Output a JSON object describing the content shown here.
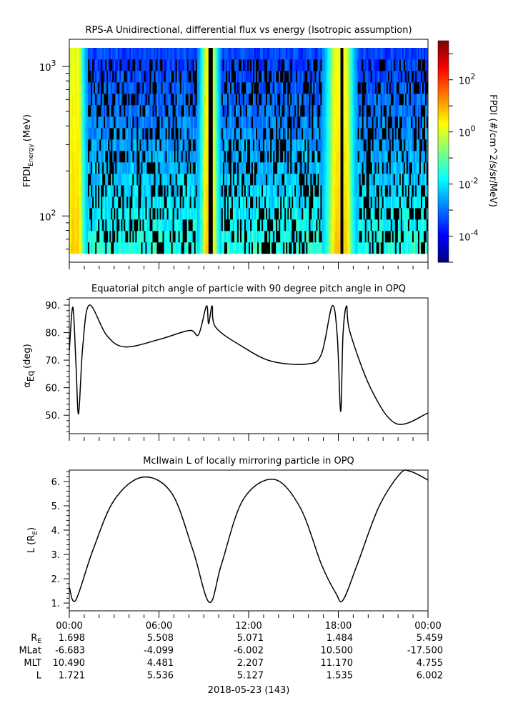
{
  "chart_data": [
    {
      "type": "heatmap",
      "title": "RPS-A Unidirectional, differential flux vs energy (Isotropic assumption)",
      "ylabel": "FPDI",
      "ylabel_sub": "Energy",
      "ylabel_unit": "(MeV)",
      "yscale": "log",
      "ylim": [
        56,
        1330
      ],
      "xlim_hours": [
        0,
        24
      ],
      "yticks": [
        {
          "base": "10",
          "exp": "2",
          "value": 100
        },
        {
          "base": "10",
          "exp": "3",
          "value": 1000
        }
      ],
      "colorbar": {
        "label": "FPDI (#/cm^2/s/sr/MeV)",
        "log_range": [
          -5,
          3.5
        ],
        "ticks": [
          {
            "base": "10",
            "exp": "2",
            "value": 2
          },
          {
            "base": "10",
            "exp": "0",
            "value": 0
          },
          {
            "base": "10",
            "exp": "-2",
            "value": -2
          },
          {
            "base": "10",
            "exp": "-4",
            "value": -4
          }
        ]
      },
      "energy_bins": 18,
      "time_bins": 250
    },
    {
      "type": "line",
      "title": "Equatorial pitch angle of particle with 90 degree pitch angle in OPQ",
      "ylabel": "α",
      "ylabel_sub": "Eq",
      "ylabel_unit": "(deg)",
      "ylim": [
        43.3,
        92.6
      ],
      "yticks": [
        "50.",
        "60.",
        "70.",
        "80.",
        "90."
      ],
      "ytick_values": [
        50,
        60,
        70,
        80,
        90
      ],
      "x": [
        0,
        0.24,
        0.45,
        0.62,
        0.9,
        1.34,
        2.5,
        3.73,
        6,
        8.03,
        8.65,
        9.18,
        9.32,
        9.56,
        9.8,
        11.62,
        13.53,
        15.92,
        16.87,
        17.59,
        17.93,
        18.16,
        18.31,
        18.55,
        18.79,
        20.22,
        21.89,
        24
      ],
      "y": [
        73.5,
        89.2,
        68,
        50.5,
        75,
        90,
        79,
        74.8,
        77.5,
        80.8,
        79.3,
        89.7,
        83.2,
        89.7,
        81.9,
        74.8,
        69.6,
        68.6,
        72.2,
        89.7,
        78.8,
        51.3,
        78.8,
        89.7,
        80,
        59.2,
        46.9,
        50.8
      ]
    },
    {
      "type": "line",
      "title": "McIlwain L of locally mirroring particle in OPQ",
      "ylabel": "L",
      "ylabel_unit_pre": "(R",
      "ylabel_sub": "E",
      "ylabel_unit_post": ")",
      "ylim": [
        0.68,
        6.47
      ],
      "yticks": [
        "1.",
        "2.",
        "3.",
        "4.",
        "5.",
        "6."
      ],
      "ytick_values": [
        1,
        2,
        3,
        4,
        5,
        6
      ],
      "x": [
        0,
        0.43,
        1.58,
        3.01,
        4.92,
        6.84,
        8.27,
        9.37,
        10.18,
        11.62,
        13.67,
        15.44,
        16.87,
        17.83,
        18.31,
        19.27,
        20.7,
        22.13,
        22.85,
        24
      ],
      "y": [
        1.65,
        1.12,
        3.18,
        5.24,
        6.18,
        5.53,
        3.18,
        1.03,
        2.59,
        5.24,
        6.09,
        4.94,
        2.59,
        1.41,
        1.12,
        2.59,
        4.94,
        6.32,
        6.41,
        6.06
      ]
    }
  ],
  "xaxis": {
    "tick_labels": [
      "00:00",
      "06:00",
      "12:00",
      "18:00",
      "00:00"
    ],
    "tick_hours": [
      0,
      6,
      12,
      18,
      24
    ],
    "date": "2018-05-23 (143)"
  },
  "ephemeris": {
    "rows": [
      {
        "label": "R",
        "sub": "E",
        "values": [
          "1.698",
          "5.508",
          "5.071",
          "1.484",
          "5.459"
        ]
      },
      {
        "label": "MLat",
        "sub": "",
        "values": [
          "-6.683",
          "-4.099",
          "-6.002",
          "10.500",
          "-17.500"
        ]
      },
      {
        "label": "MLT",
        "sub": "",
        "values": [
          "10.490",
          "4.481",
          "2.207",
          "11.170",
          "4.755"
        ]
      },
      {
        "label": "L",
        "sub": "",
        "values": [
          "1.721",
          "5.536",
          "5.127",
          "1.535",
          "6.002"
        ]
      }
    ]
  }
}
